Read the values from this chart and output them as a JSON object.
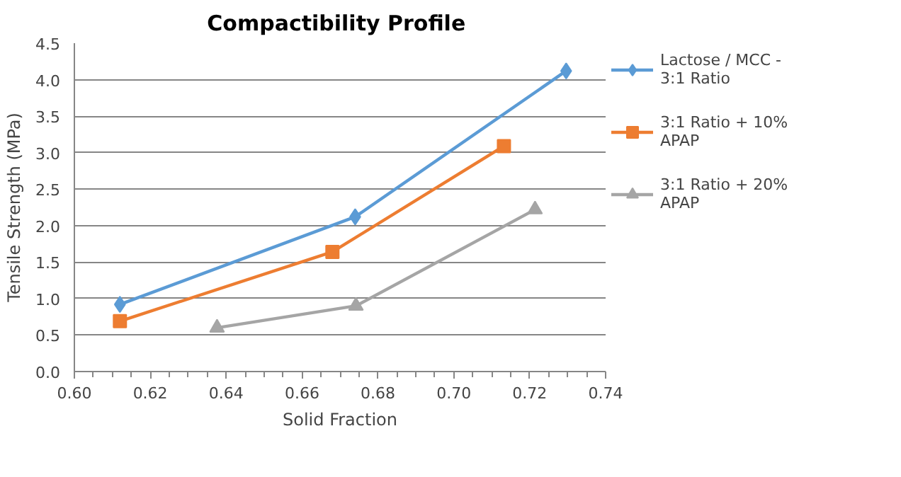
{
  "chart_data": {
    "type": "line",
    "title": "Compactibility  Profile",
    "xlabel": "Solid Fraction",
    "ylabel": "Tensile Strength (MPa)",
    "xlim": [
      0.6,
      0.74
    ],
    "xticks": [
      {
        "value": 0.6,
        "label": "0.60"
      },
      0.62,
      0.64,
      0.66,
      0.68,
      {
        "value": 0.7,
        "label": "0.70"
      },
      0.72,
      0.74
    ],
    "ylim": [
      0,
      4.5
    ],
    "yticks": [
      {
        "value": 0,
        "label": "0.0"
      },
      0.5,
      {
        "value": 1,
        "label": "1.0"
      },
      1.5,
      {
        "value": 2,
        "label": "2.0"
      },
      2.5,
      {
        "value": 3,
        "label": "3.0"
      },
      3.5,
      {
        "value": 4,
        "label": "4.0"
      },
      4.5
    ],
    "grid": "y",
    "legend": "right",
    "series": [
      {
        "name": "Lactose / MCC - 3:1 Ratio",
        "color": "#5b9bd5",
        "marker": "diamond",
        "x": [
          0.612,
          0.674,
          0.7296
        ],
        "values": [
          0.92,
          2.12,
          4.12
        ]
      },
      {
        "name": "3:1 Ratio + 10% APAP",
        "color": "#ed7d31",
        "marker": "square",
        "x": [
          0.612,
          0.668,
          0.7132
        ],
        "values": [
          0.69,
          1.64,
          3.09
        ]
      },
      {
        "name": "3:1 Ratio + 20% APAP",
        "color": "#a5a5a5",
        "marker": "triangle",
        "x": [
          0.6376,
          0.6742,
          0.7214
        ],
        "values": [
          0.6,
          0.9,
          2.22
        ]
      }
    ]
  }
}
